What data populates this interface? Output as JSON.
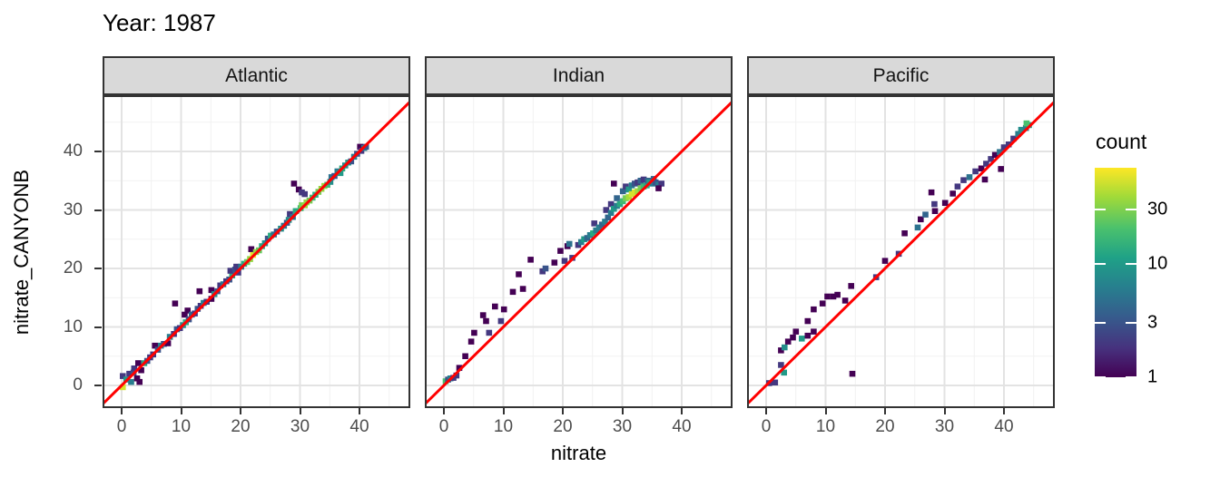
{
  "chart_data": {
    "type": "heatmap",
    "subtype": "bin2d-scatter",
    "title": "Year: 1987",
    "xlabel": "nitrate",
    "ylabel": "nitrate_CANYONB",
    "axes": {
      "x_ticks": [
        0,
        10,
        20,
        30,
        40
      ],
      "y_ticks": [
        0,
        10,
        20,
        30,
        40
      ],
      "x_minor_ticks": [
        5,
        15,
        25,
        35,
        45
      ],
      "y_minor_ticks": [
        5,
        15,
        25,
        35,
        45
      ],
      "x_range": [
        -3.2,
        48.5
      ],
      "y_range": [
        -3.9,
        49.6
      ],
      "grid": true
    },
    "legend": {
      "title": "count",
      "ticks": [
        30,
        10,
        3,
        1
      ],
      "scale": "log",
      "max": 70,
      "position": "right"
    },
    "refline": {
      "slope": 1,
      "intercept": 0
    },
    "colors": {
      "refline": "#ff0000",
      "viridis": [
        "#440154",
        "#46327e",
        "#365c8d",
        "#277f8e",
        "#1fa187",
        "#4ac16d",
        "#a0da39",
        "#fde725"
      ],
      "strip_bg": "#d9d9d9",
      "panel_border": "#333333",
      "grid_major": "#e3e3e3",
      "grid_minor": "#f1f1f1",
      "axis_text": "#4d4d4d"
    },
    "facets": [
      {
        "label": "Atlantic",
        "bins": [
          [
            0.2,
            -0.3,
            55
          ],
          [
            0.2,
            1.6,
            2
          ],
          [
            0.8,
            1.0,
            10
          ],
          [
            1.3,
            2.0,
            2
          ],
          [
            1.6,
            0.6,
            6
          ],
          [
            2.0,
            2.2,
            3
          ],
          [
            2.1,
            2.9,
            2
          ],
          [
            2.6,
            1.2,
            1
          ],
          [
            3.0,
            0.6,
            1
          ],
          [
            2.8,
            3.8,
            1
          ],
          [
            3.3,
            2.6,
            1
          ],
          [
            3.8,
            3.8,
            13
          ],
          [
            4.3,
            4.2,
            3
          ],
          [
            4.8,
            4.8,
            2
          ],
          [
            5.3,
            5.3,
            2
          ],
          [
            5.6,
            6.8,
            1
          ],
          [
            6.1,
            6.1,
            3
          ],
          [
            6.6,
            6.8,
            6
          ],
          [
            7.1,
            7.1,
            3
          ],
          [
            7.8,
            7.2,
            1
          ],
          [
            8.1,
            8.3,
            6
          ],
          [
            8.8,
            8.8,
            2
          ],
          [
            9.0,
            14.0,
            1
          ],
          [
            9.3,
            9.6,
            3
          ],
          [
            9.8,
            9.8,
            2
          ],
          [
            10.3,
            10.3,
            8
          ],
          [
            10.6,
            12.1,
            1
          ],
          [
            11.1,
            12.8,
            1
          ],
          [
            10.8,
            10.8,
            13
          ],
          [
            11.3,
            11.3,
            3
          ],
          [
            11.8,
            12.1,
            4
          ],
          [
            12.3,
            12.3,
            2
          ],
          [
            12.8,
            13.1,
            3
          ],
          [
            13.1,
            16.1,
            1
          ],
          [
            13.3,
            13.6,
            2
          ],
          [
            13.8,
            14.1,
            6
          ],
          [
            14.3,
            14.3,
            2
          ],
          [
            15.1,
            14.8,
            1
          ],
          [
            15.1,
            16.3,
            1
          ],
          [
            15.6,
            15.6,
            8
          ],
          [
            16.1,
            16.1,
            3
          ],
          [
            16.6,
            17.1,
            2
          ],
          [
            17.1,
            17.3,
            5
          ],
          [
            17.6,
            17.8,
            2
          ],
          [
            18.1,
            18.1,
            3
          ],
          [
            18.6,
            18.8,
            12
          ],
          [
            18.3,
            19.6,
            2
          ],
          [
            19.1,
            19.8,
            3
          ],
          [
            19.6,
            19.3,
            2
          ],
          [
            19.3,
            20.3,
            2
          ],
          [
            20.1,
            20.3,
            6
          ],
          [
            20.6,
            20.8,
            13
          ],
          [
            21.1,
            21.1,
            25
          ],
          [
            21.6,
            21.6,
            35
          ],
          [
            21.8,
            23.3,
            1
          ],
          [
            22.1,
            22.3,
            60
          ],
          [
            22.6,
            22.8,
            35
          ],
          [
            23.1,
            23.1,
            25
          ],
          [
            23.6,
            23.8,
            13
          ],
          [
            24.1,
            24.3,
            8
          ],
          [
            24.6,
            25.1,
            3
          ],
          [
            25.1,
            25.6,
            13
          ],
          [
            25.6,
            25.8,
            5
          ],
          [
            26.1,
            26.3,
            3
          ],
          [
            26.8,
            26.8,
            8
          ],
          [
            27.3,
            27.3,
            5
          ],
          [
            27.8,
            27.8,
            3
          ],
          [
            28.1,
            28.3,
            8
          ],
          [
            28.3,
            29.3,
            2
          ],
          [
            28.8,
            28.8,
            5
          ],
          [
            29.3,
            29.8,
            13
          ],
          [
            29.0,
            34.5,
            1
          ],
          [
            29.8,
            33.5,
            1
          ],
          [
            30.3,
            33.0,
            2
          ],
          [
            30.8,
            32.7,
            2
          ],
          [
            30.1,
            30.3,
            18
          ],
          [
            30.3,
            30.8,
            28
          ],
          [
            30.8,
            30.8,
            35
          ],
          [
            31.1,
            31.3,
            35
          ],
          [
            31.6,
            31.6,
            28
          ],
          [
            32.1,
            32.1,
            18
          ],
          [
            32.6,
            32.6,
            13
          ],
          [
            33.1,
            33.1,
            28
          ],
          [
            33.6,
            33.6,
            35
          ],
          [
            34.1,
            34.1,
            35
          ],
          [
            34.6,
            34.3,
            18
          ],
          [
            35.1,
            34.8,
            8
          ],
          [
            35.3,
            35.6,
            5
          ],
          [
            35.8,
            35.8,
            3
          ],
          [
            36.3,
            36.6,
            6
          ],
          [
            36.8,
            36.3,
            10
          ],
          [
            37.1,
            37.1,
            13
          ],
          [
            37.6,
            37.6,
            8
          ],
          [
            38.1,
            38.1,
            10
          ],
          [
            38.6,
            38.3,
            3
          ],
          [
            39.1,
            39.1,
            6
          ],
          [
            39.6,
            39.6,
            3
          ],
          [
            40.1,
            40.8,
            1
          ],
          [
            40.3,
            40.1,
            2
          ],
          [
            40.8,
            40.6,
            6
          ],
          [
            41.1,
            40.8,
            3
          ]
        ]
      },
      {
        "label": "Indian",
        "bins": [
          [
            0.3,
            0.7,
            20
          ],
          [
            0.7,
            1.0,
            3
          ],
          [
            1.1,
            1.2,
            6
          ],
          [
            1.6,
            1.3,
            2
          ],
          [
            2.1,
            1.7,
            2
          ],
          [
            2.6,
            3.0,
            1
          ],
          [
            3.6,
            5.0,
            1
          ],
          [
            4.6,
            7.5,
            1
          ],
          [
            5.1,
            9.0,
            1
          ],
          [
            6.6,
            12.0,
            1
          ],
          [
            7.6,
            9.0,
            2
          ],
          [
            7.1,
            11.0,
            1
          ],
          [
            8.6,
            13.5,
            1
          ],
          [
            9.6,
            11.0,
            2
          ],
          [
            10.1,
            13.0,
            1
          ],
          [
            11.6,
            16.0,
            1
          ],
          [
            12.6,
            19.0,
            1
          ],
          [
            13.3,
            16.5,
            1
          ],
          [
            14.6,
            21.5,
            1
          ],
          [
            16.6,
            19.5,
            2
          ],
          [
            17.1,
            20.0,
            3
          ],
          [
            18.6,
            21.0,
            1
          ],
          [
            19.6,
            23.0,
            1
          ],
          [
            20.3,
            21.3,
            2
          ],
          [
            20.8,
            23.8,
            1
          ],
          [
            21.1,
            24.2,
            5
          ],
          [
            21.6,
            21.8,
            2
          ],
          [
            22.6,
            24.0,
            2
          ],
          [
            23.1,
            24.5,
            6
          ],
          [
            23.6,
            25.0,
            10
          ],
          [
            24.1,
            25.2,
            4
          ],
          [
            24.6,
            25.7,
            6
          ],
          [
            25.1,
            26.0,
            13
          ],
          [
            25.6,
            26.5,
            6
          ],
          [
            25.3,
            27.7,
            2
          ],
          [
            26.1,
            27.0,
            6
          ],
          [
            26.6,
            27.5,
            4
          ],
          [
            27.1,
            28.0,
            6
          ],
          [
            27.6,
            28.7,
            4
          ],
          [
            27.3,
            30.0,
            2
          ],
          [
            28.1,
            29.5,
            6
          ],
          [
            28.1,
            31.0,
            2
          ],
          [
            28.6,
            30.2,
            10
          ],
          [
            28.6,
            34.5,
            1
          ],
          [
            29.1,
            30.7,
            6
          ],
          [
            29.1,
            32.0,
            4
          ],
          [
            29.6,
            31.0,
            13
          ],
          [
            30.1,
            31.5,
            18
          ],
          [
            30.1,
            33.2,
            4
          ],
          [
            30.6,
            32.0,
            28
          ],
          [
            30.6,
            34.0,
            2
          ],
          [
            31.1,
            32.2,
            40
          ],
          [
            31.1,
            33.5,
            10
          ],
          [
            31.6,
            32.7,
            55
          ],
          [
            31.6,
            34.2,
            6
          ],
          [
            32.1,
            33.0,
            55
          ],
          [
            32.1,
            34.5,
            3
          ],
          [
            32.6,
            33.2,
            40
          ],
          [
            32.6,
            34.7,
            2
          ],
          [
            33.1,
            33.7,
            28
          ],
          [
            33.1,
            35.0,
            4
          ],
          [
            33.6,
            34.0,
            18
          ],
          [
            33.6,
            35.2,
            2
          ],
          [
            34.1,
            34.2,
            13
          ],
          [
            34.3,
            35.0,
            4
          ],
          [
            34.6,
            34.7,
            10
          ],
          [
            35.1,
            34.5,
            6
          ],
          [
            35.3,
            35.3,
            4
          ],
          [
            35.6,
            34.7,
            3
          ],
          [
            36.1,
            34.3,
            6
          ],
          [
            36.6,
            34.5,
            2
          ],
          [
            36.1,
            33.7,
            1
          ]
        ]
      },
      {
        "label": "Pacific",
        "bins": [
          [
            0.5,
            0.4,
            2
          ],
          [
            1.5,
            0.5,
            2
          ],
          [
            2.5,
            3.5,
            2
          ],
          [
            3.0,
            2.2,
            10
          ],
          [
            2.5,
            6.0,
            1
          ],
          [
            3.1,
            6.5,
            8
          ],
          [
            3.7,
            7.5,
            1
          ],
          [
            4.5,
            8.2,
            1
          ],
          [
            5.0,
            9.2,
            1
          ],
          [
            6.0,
            8.0,
            10
          ],
          [
            7.0,
            11.0,
            1
          ],
          [
            7.0,
            8.5,
            1
          ],
          [
            8.0,
            9.2,
            1
          ],
          [
            8.0,
            13.0,
            1
          ],
          [
            9.5,
            14.0,
            1
          ],
          [
            10.3,
            15.2,
            1
          ],
          [
            11.3,
            15.2,
            1
          ],
          [
            12.0,
            15.5,
            1
          ],
          [
            13.3,
            14.5,
            1
          ],
          [
            14.3,
            17.0,
            1
          ],
          [
            14.5,
            2.0,
            1
          ],
          [
            18.5,
            18.5,
            2
          ],
          [
            20.0,
            21.3,
            1
          ],
          [
            22.3,
            22.5,
            2
          ],
          [
            23.3,
            26.0,
            1
          ],
          [
            25.5,
            27.0,
            5
          ],
          [
            26.0,
            28.4,
            1
          ],
          [
            26.8,
            29.2,
            4
          ],
          [
            27.8,
            33.0,
            1
          ],
          [
            28.4,
            29.8,
            1
          ],
          [
            28.3,
            31.0,
            2
          ],
          [
            30.1,
            31.2,
            1
          ],
          [
            31.4,
            32.8,
            1
          ],
          [
            32.2,
            34.0,
            2
          ],
          [
            33.2,
            35.1,
            2
          ],
          [
            34.2,
            35.6,
            5
          ],
          [
            35.2,
            36.6,
            2
          ],
          [
            36.2,
            37.1,
            1
          ],
          [
            36.8,
            35.2,
            1
          ],
          [
            37.0,
            37.9,
            2
          ],
          [
            37.8,
            38.7,
            2
          ],
          [
            38.5,
            39.4,
            1
          ],
          [
            39.3,
            39.9,
            5
          ],
          [
            39.5,
            37.0,
            1
          ],
          [
            40.0,
            40.7,
            2
          ],
          [
            40.8,
            41.2,
            2
          ],
          [
            41.6,
            42.2,
            2
          ],
          [
            42.4,
            43.0,
            6
          ],
          [
            42.9,
            43.7,
            8
          ],
          [
            43.7,
            44.0,
            6
          ],
          [
            44.2,
            44.5,
            10
          ],
          [
            43.8,
            44.8,
            20
          ]
        ]
      }
    ]
  }
}
